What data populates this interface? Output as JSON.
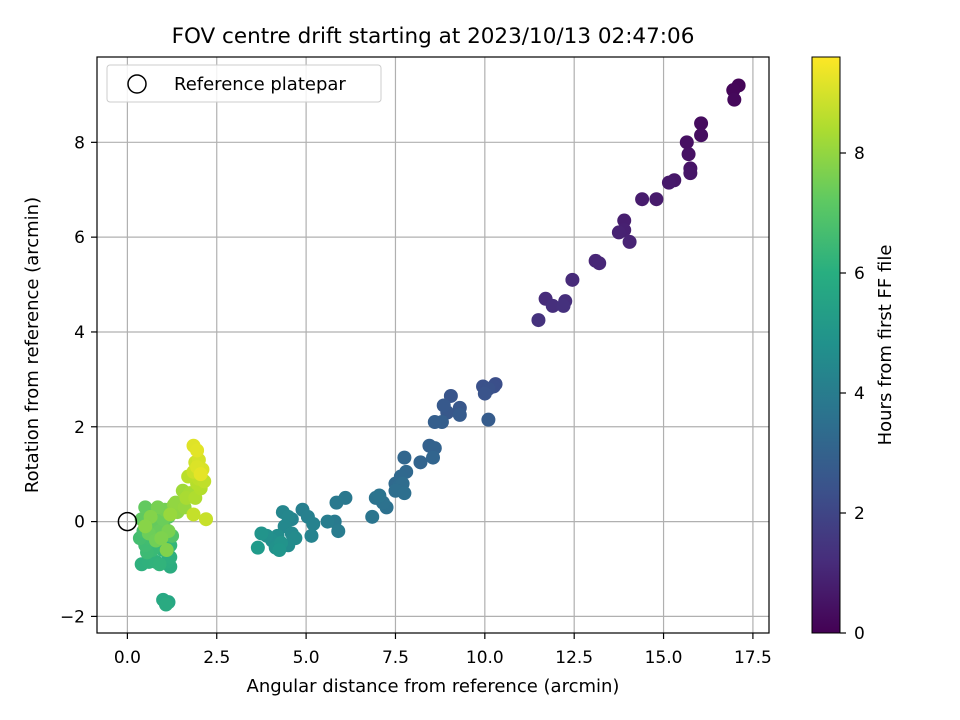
{
  "chart_data": {
    "type": "scatter",
    "title": "FOV centre drift starting at 2023/10/13 02:47:06",
    "xlabel": "Angular distance from reference (arcmin)",
    "ylabel": "Rotation from reference (arcmin)",
    "colorbar_label": "Hours from first FF file",
    "colormap": "viridis",
    "xlim": [
      -0.85,
      17.95
    ],
    "ylim": [
      -2.35,
      9.8
    ],
    "clim": [
      0,
      9.6
    ],
    "xticks": [
      0.0,
      2.5,
      5.0,
      7.5,
      10.0,
      12.5,
      15.0,
      17.5
    ],
    "xtick_labels": [
      "0.0",
      "2.5",
      "5.0",
      "7.5",
      "10.0",
      "12.5",
      "15.0",
      "17.5"
    ],
    "yticks": [
      -2,
      0,
      2,
      4,
      6,
      8
    ],
    "ytick_labels": [
      "−2",
      "0",
      "2",
      "4",
      "6",
      "8"
    ],
    "cticks": [
      0,
      2,
      4,
      6,
      8
    ],
    "ctick_labels": [
      "0",
      "2",
      "4",
      "6",
      "8"
    ],
    "grid": true,
    "legend": {
      "location": "upper-left",
      "entries": [
        "Reference platepar"
      ]
    },
    "reference_point": {
      "x": 0.0,
      "y": 0.0
    },
    "points": [
      [
        17.1,
        9.2,
        0.1
      ],
      [
        16.95,
        9.1,
        0.15
      ],
      [
        16.98,
        8.9,
        0.2
      ],
      [
        16.05,
        8.4,
        0.3
      ],
      [
        16.05,
        8.15,
        0.35
      ],
      [
        15.65,
        8.0,
        0.4
      ],
      [
        15.7,
        7.75,
        0.45
      ],
      [
        15.75,
        7.45,
        0.5
      ],
      [
        15.75,
        7.35,
        0.55
      ],
      [
        15.3,
        7.2,
        0.6
      ],
      [
        15.15,
        7.15,
        0.65
      ],
      [
        14.8,
        6.8,
        0.7
      ],
      [
        14.4,
        6.8,
        0.75
      ],
      [
        13.9,
        6.35,
        0.8
      ],
      [
        13.9,
        6.15,
        0.85
      ],
      [
        13.75,
        6.1,
        0.9
      ],
      [
        14.05,
        5.9,
        0.95
      ],
      [
        13.1,
        5.5,
        1.0
      ],
      [
        13.2,
        5.45,
        1.05
      ],
      [
        12.45,
        5.1,
        1.15
      ],
      [
        11.7,
        4.7,
        1.2
      ],
      [
        12.25,
        4.65,
        1.25
      ],
      [
        11.9,
        4.55,
        1.3
      ],
      [
        12.2,
        4.55,
        1.35
      ],
      [
        11.5,
        4.25,
        1.4
      ],
      [
        10.3,
        2.9,
        2.3
      ],
      [
        10.25,
        2.85,
        2.35
      ],
      [
        9.95,
        2.85,
        2.4
      ],
      [
        10.1,
        2.8,
        2.45
      ],
      [
        10.0,
        2.7,
        2.5
      ],
      [
        9.05,
        2.65,
        2.55
      ],
      [
        9.3,
        2.4,
        2.6
      ],
      [
        8.95,
        2.3,
        2.65
      ],
      [
        8.85,
        2.45,
        2.7
      ],
      [
        9.3,
        2.25,
        2.75
      ],
      [
        10.1,
        2.15,
        2.8
      ],
      [
        8.8,
        2.1,
        2.85
      ],
      [
        8.6,
        2.1,
        2.9
      ],
      [
        8.45,
        1.6,
        2.95
      ],
      [
        8.6,
        1.55,
        3.0
      ],
      [
        8.2,
        1.25,
        3.05
      ],
      [
        8.55,
        1.35,
        3.1
      ],
      [
        7.75,
        1.35,
        3.15
      ],
      [
        7.8,
        1.05,
        3.2
      ],
      [
        7.65,
        0.95,
        3.25
      ],
      [
        7.5,
        0.8,
        3.3
      ],
      [
        7.6,
        0.75,
        3.35
      ],
      [
        7.7,
        0.8,
        3.4
      ],
      [
        7.5,
        0.65,
        3.45
      ],
      [
        7.75,
        0.6,
        3.5
      ],
      [
        7.25,
        0.3,
        3.55
      ],
      [
        7.15,
        0.4,
        3.6
      ],
      [
        6.95,
        0.5,
        3.65
      ],
      [
        7.05,
        0.55,
        3.7
      ],
      [
        6.85,
        0.1,
        3.75
      ],
      [
        6.1,
        0.5,
        3.85
      ],
      [
        5.85,
        0.4,
        3.9
      ],
      [
        5.8,
        0.0,
        3.95
      ],
      [
        5.9,
        -0.2,
        4.0
      ],
      [
        5.6,
        0.0,
        4.05
      ],
      [
        4.9,
        0.25,
        4.15
      ],
      [
        5.05,
        0.1,
        4.2
      ],
      [
        5.2,
        -0.05,
        4.25
      ],
      [
        5.15,
        -0.3,
        4.3
      ],
      [
        4.6,
        0.05,
        4.35
      ],
      [
        4.35,
        0.2,
        4.4
      ],
      [
        4.5,
        0.1,
        4.45
      ],
      [
        4.4,
        -0.1,
        4.5
      ],
      [
        4.6,
        -0.25,
        4.55
      ],
      [
        4.7,
        -0.35,
        4.6
      ],
      [
        4.5,
        -0.5,
        4.65
      ],
      [
        4.2,
        -0.3,
        4.7
      ],
      [
        4.05,
        -0.4,
        4.75
      ],
      [
        3.9,
        -0.3,
        4.8
      ],
      [
        4.15,
        -0.55,
        4.85
      ],
      [
        4.3,
        -0.45,
        4.9
      ],
      [
        3.75,
        -0.25,
        4.95
      ],
      [
        4.25,
        -0.6,
        5.0
      ],
      [
        3.65,
        -0.55,
        5.2
      ],
      [
        1.15,
        -1.7,
        5.7
      ],
      [
        1.0,
        -1.65,
        5.75
      ],
      [
        1.08,
        -1.75,
        5.85
      ],
      [
        1.2,
        -0.95,
        5.95
      ],
      [
        1.1,
        -0.85,
        6.0
      ],
      [
        1.2,
        -0.75,
        6.05
      ],
      [
        0.4,
        -0.9,
        6.1
      ],
      [
        0.6,
        -0.85,
        6.15
      ],
      [
        0.8,
        -0.85,
        6.2
      ],
      [
        0.9,
        -0.9,
        6.25
      ],
      [
        1.0,
        -0.6,
        6.3
      ],
      [
        1.2,
        -0.5,
        6.35
      ],
      [
        1.1,
        -0.4,
        6.4
      ],
      [
        0.9,
        -0.5,
        6.45
      ],
      [
        0.7,
        -0.6,
        6.5
      ],
      [
        0.55,
        -0.65,
        6.55
      ],
      [
        0.5,
        -0.5,
        6.6
      ],
      [
        0.6,
        -0.35,
        6.65
      ],
      [
        0.35,
        -0.35,
        6.7
      ],
      [
        0.45,
        -0.2,
        6.75
      ],
      [
        0.7,
        -0.1,
        6.8
      ],
      [
        0.85,
        -0.05,
        6.85
      ],
      [
        1.05,
        -0.15,
        6.9
      ],
      [
        1.25,
        -0.3,
        6.95
      ],
      [
        1.15,
        0.1,
        7.0
      ],
      [
        0.95,
        0.15,
        7.05
      ],
      [
        0.75,
        0.2,
        7.1
      ],
      [
        0.55,
        0.15,
        7.15
      ],
      [
        0.4,
        0.05,
        7.2
      ],
      [
        0.5,
        0.3,
        7.25
      ],
      [
        0.7,
        0.0,
        7.3
      ],
      [
        0.9,
        -0.2,
        7.35
      ],
      [
        1.0,
        0.05,
        7.4
      ],
      [
        0.6,
        -0.25,
        7.45
      ],
      [
        0.8,
        -0.4,
        7.5
      ],
      [
        1.05,
        0.25,
        7.55
      ],
      [
        0.85,
        0.3,
        7.6
      ],
      [
        1.15,
        -0.2,
        7.65
      ],
      [
        0.95,
        -0.35,
        7.7
      ],
      [
        1.1,
        -0.6,
        7.75
      ],
      [
        0.65,
        0.1,
        7.8
      ],
      [
        0.5,
        -0.1,
        7.85
      ],
      [
        1.3,
        0.35,
        7.9
      ],
      [
        1.4,
        0.2,
        7.95
      ],
      [
        1.35,
        0.4,
        8.0
      ],
      [
        1.6,
        0.3,
        8.05
      ],
      [
        1.2,
        0.15,
        8.1
      ],
      [
        1.55,
        0.65,
        8.2
      ],
      [
        1.75,
        0.6,
        8.3
      ],
      [
        1.65,
        0.5,
        8.35
      ],
      [
        1.9,
        0.5,
        8.45
      ],
      [
        2.05,
        0.7,
        8.5
      ],
      [
        1.95,
        0.8,
        8.55
      ],
      [
        1.7,
        0.95,
        8.6
      ],
      [
        2.0,
        0.9,
        8.65
      ],
      [
        2.15,
        0.85,
        8.7
      ],
      [
        1.85,
        0.15,
        8.75
      ],
      [
        2.2,
        0.05,
        8.8
      ],
      [
        1.85,
        1.05,
        8.85
      ],
      [
        1.9,
        1.25,
        8.9
      ],
      [
        2.0,
        1.3,
        9.0
      ],
      [
        2.1,
        1.1,
        9.05
      ],
      [
        1.95,
        1.15,
        9.1
      ],
      [
        1.85,
        1.6,
        9.15
      ],
      [
        1.95,
        1.5,
        9.2
      ],
      [
        2.05,
        1.0,
        9.25
      ]
    ]
  }
}
